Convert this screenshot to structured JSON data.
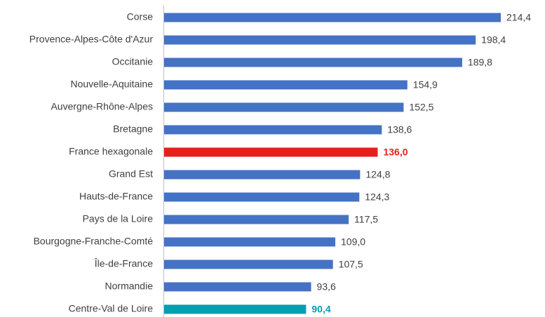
{
  "chart_data": {
    "type": "bar",
    "orientation": "horizontal",
    "categories": [
      "Corse",
      "Provence-Alpes-Côte d'Azur",
      "Occitanie",
      "Nouvelle-Aquitaine",
      "Auvergne-Rhône-Alpes",
      "Bretagne",
      "France hexagonale",
      "Grand Est",
      "Hauts-de-France",
      "Pays de la Loire",
      "Bourgogne-Franche-Comté",
      "Île-de-France",
      "Normandie",
      "Centre-Val de Loire"
    ],
    "values": [
      214.4,
      198.4,
      189.8,
      154.9,
      152.5,
      138.6,
      136.0,
      124.8,
      124.3,
      117.5,
      109.0,
      107.5,
      93.6,
      90.4
    ],
    "value_labels": [
      "214,4",
      "198,4",
      "189,8",
      "154,9",
      "152,5",
      "138,6",
      "136,0",
      "124,8",
      "124,3",
      "117,5",
      "109,0",
      "107,5",
      "93,6",
      "90,4"
    ],
    "color": "#4472c4",
    "colors": [
      "#4472c4",
      "#4472c4",
      "#4472c4",
      "#4472c4",
      "#4472c4",
      "#4472c4",
      "#e3211c",
      "#4472c4",
      "#4472c4",
      "#4472c4",
      "#4472c4",
      "#4472c4",
      "#4472c4",
      "#00a0b0"
    ]
  }
}
